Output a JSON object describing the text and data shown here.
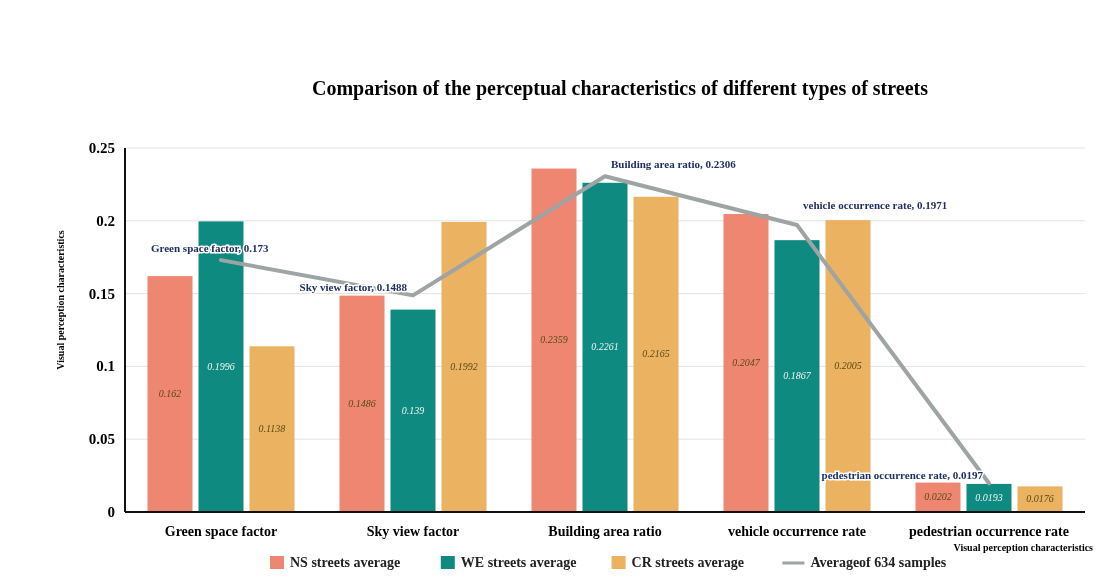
{
  "chart_data": {
    "type": "bar",
    "title": "Comparison of the perceptual characteristics of different types of streets",
    "xlabel": "Visual perception characteristics",
    "ylabel": "Visual perception characteristics",
    "categories": [
      "Green space factor",
      "Sky view factor",
      "Building area ratio",
      "vehicle occurrence rate",
      "pedestrian occurrence rate"
    ],
    "series": [
      {
        "name": "NS streets average",
        "color": "#ee8672",
        "values": [
          0.162,
          0.1486,
          0.2359,
          0.2047,
          0.0202
        ],
        "value_labels": [
          "0.162",
          "0.1486",
          "0.2359",
          "0.2047",
          "0.0202"
        ]
      },
      {
        "name": "WE streets average",
        "color": "#0e8a80",
        "values": [
          0.1996,
          0.139,
          0.2261,
          0.1867,
          0.0193
        ],
        "value_labels": [
          "0.1996",
          "0.139",
          "0.2261",
          "0.1867",
          "0.0193"
        ]
      },
      {
        "name": "CR streets average",
        "color": "#ebb262",
        "values": [
          0.1138,
          0.1992,
          0.2165,
          0.2005,
          0.0176
        ],
        "value_labels": [
          "0.1138",
          "0.1992",
          "0.2165",
          "0.2005",
          "0.0176"
        ]
      },
      {
        "name": "Averageof 634 samples",
        "type": "line",
        "color": "#9ea3a3",
        "values": [
          0.173,
          0.1488,
          0.2306,
          0.1971,
          0.0197
        ],
        "value_labels": [
          "Green space factor, 0.173",
          "Sky view factor, 0.1488",
          "Building area ratio, 0.2306",
          "vehicle occurrence rate, 0.1971",
          "pedestrian occurrence rate, 0.0197"
        ]
      }
    ],
    "ylim": [
      0,
      0.25
    ],
    "yticks": [
      0,
      0.05,
      0.1,
      0.15,
      0.2,
      0.25
    ],
    "grid": "y",
    "legend": "bottom",
    "marker": "none",
    "line_style": "solid"
  }
}
